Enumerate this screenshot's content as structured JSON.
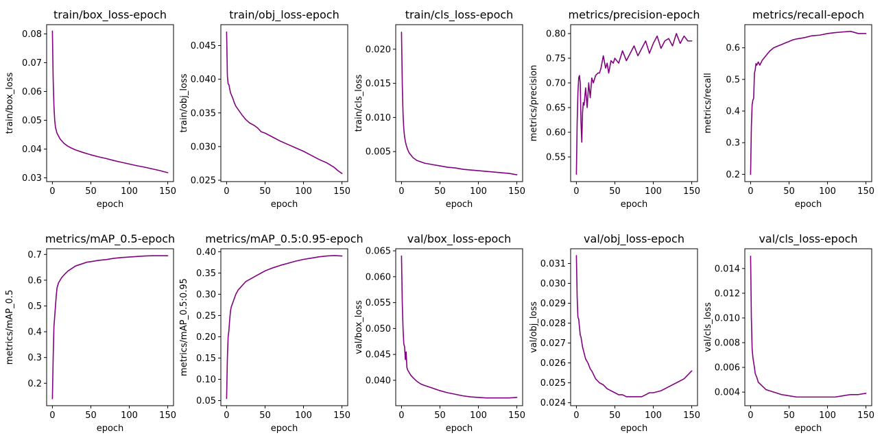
{
  "figure": {
    "line_color": "#800080",
    "grid": false,
    "chart_count": 10
  },
  "chart_data": [
    {
      "type": "line",
      "title": "train/box_loss-epoch",
      "xlabel": "epoch",
      "ylabel": "train/box_loss",
      "xlim": [
        -7.5,
        157.5
      ],
      "ylim": [
        0.0287,
        0.0832
      ],
      "xticks": [
        0,
        50,
        100,
        150
      ],
      "yticks": [
        0.03,
        0.04,
        0.05,
        0.06,
        0.07,
        0.08
      ],
      "ytick_labels": [
        "0.03",
        "0.04",
        "0.05",
        "0.06",
        "0.07",
        "0.08"
      ],
      "series": [
        {
          "x": [
            0,
            1,
            2,
            3,
            4,
            6,
            8,
            10,
            15,
            20,
            25,
            30,
            40,
            50,
            60,
            70,
            80,
            90,
            100,
            110,
            120,
            130,
            140,
            150
          ],
          "y": [
            0.081,
            0.064,
            0.055,
            0.05,
            0.0475,
            0.0455,
            0.0445,
            0.0435,
            0.042,
            0.041,
            0.0403,
            0.0397,
            0.0388,
            0.038,
            0.0373,
            0.0367,
            0.036,
            0.0354,
            0.0348,
            0.0342,
            0.0337,
            0.0331,
            0.0325,
            0.0318
          ]
        }
      ]
    },
    {
      "type": "line",
      "title": "train/obj_loss-epoch",
      "xlabel": "epoch",
      "ylabel": "train/obj_loss",
      "xlim": [
        -7.5,
        157.5
      ],
      "ylim": [
        0.0248,
        0.0481
      ],
      "xticks": [
        0,
        50,
        100,
        150
      ],
      "yticks": [
        0.025,
        0.03,
        0.035,
        0.04,
        0.045
      ],
      "ytick_labels": [
        "0.025",
        "0.030",
        "0.035",
        "0.040",
        "0.045"
      ],
      "series": [
        {
          "x": [
            0,
            1,
            2,
            3,
            5,
            8,
            10,
            12,
            15,
            20,
            25,
            30,
            35,
            40,
            45,
            50,
            60,
            70,
            80,
            90,
            100,
            110,
            120,
            130,
            140,
            145,
            150
          ],
          "y": [
            0.047,
            0.0405,
            0.0393,
            0.0392,
            0.038,
            0.0372,
            0.0365,
            0.036,
            0.0355,
            0.0347,
            0.034,
            0.0335,
            0.0332,
            0.0328,
            0.0322,
            0.032,
            0.0314,
            0.0308,
            0.0303,
            0.0298,
            0.0293,
            0.0287,
            0.0281,
            0.0276,
            0.0269,
            0.0264,
            0.026
          ]
        }
      ]
    },
    {
      "type": "line",
      "title": "train/cls_loss-epoch",
      "xlabel": "epoch",
      "ylabel": "train/cls_loss",
      "xlim": [
        -7.5,
        157.5
      ],
      "ylim": [
        0.0006,
        0.0236
      ],
      "xticks": [
        0,
        50,
        100,
        150
      ],
      "yticks": [
        0.005,
        0.01,
        0.015,
        0.02
      ],
      "ytick_labels": [
        "0.005",
        "0.010",
        "0.015",
        "0.020"
      ],
      "series": [
        {
          "x": [
            0,
            1,
            2,
            3,
            4,
            5,
            6,
            8,
            10,
            15,
            20,
            30,
            40,
            50,
            60,
            70,
            80,
            90,
            100,
            110,
            120,
            130,
            140,
            150
          ],
          "y": [
            0.0225,
            0.015,
            0.0105,
            0.0083,
            0.0072,
            0.0065,
            0.006,
            0.0053,
            0.0048,
            0.0041,
            0.0037,
            0.0033,
            0.0031,
            0.0029,
            0.0027,
            0.0026,
            0.0024,
            0.0023,
            0.0022,
            0.0021,
            0.002,
            0.0019,
            0.0018,
            0.0016
          ]
        }
      ]
    },
    {
      "type": "line",
      "title": "metrics/precision-epoch",
      "xlabel": "epoch",
      "ylabel": "metrics/precision",
      "xlim": [
        -7.5,
        157.5
      ],
      "ylim": [
        0.5,
        0.818
      ],
      "xticks": [
        0,
        50,
        100,
        150
      ],
      "yticks": [
        0.55,
        0.6,
        0.65,
        0.7,
        0.75,
        0.8
      ],
      "ytick_labels": [
        "0.55",
        "0.60",
        "0.65",
        "0.70",
        "0.75",
        "0.80"
      ],
      "series": [
        {
          "x": [
            0,
            1,
            2,
            3,
            4,
            5,
            6,
            7,
            8,
            9,
            10,
            12,
            14,
            16,
            18,
            20,
            22,
            25,
            28,
            30,
            32,
            35,
            38,
            40,
            42,
            45,
            48,
            50,
            55,
            60,
            65,
            70,
            75,
            80,
            85,
            90,
            95,
            100,
            105,
            110,
            115,
            120,
            125,
            130,
            135,
            140,
            145,
            150
          ],
          "y": [
            0.515,
            0.62,
            0.68,
            0.71,
            0.715,
            0.7,
            0.62,
            0.58,
            0.64,
            0.66,
            0.655,
            0.69,
            0.65,
            0.7,
            0.67,
            0.71,
            0.7,
            0.715,
            0.72,
            0.72,
            0.73,
            0.755,
            0.73,
            0.74,
            0.72,
            0.745,
            0.74,
            0.75,
            0.74,
            0.765,
            0.745,
            0.76,
            0.775,
            0.755,
            0.77,
            0.785,
            0.76,
            0.78,
            0.795,
            0.77,
            0.785,
            0.79,
            0.775,
            0.8,
            0.78,
            0.795,
            0.785,
            0.785
          ]
        }
      ]
    },
    {
      "type": "line",
      "title": "metrics/recall-epoch",
      "xlabel": "epoch",
      "ylabel": "metrics/recall",
      "xlim": [
        -7.5,
        157.5
      ],
      "ylim": [
        0.177,
        0.673
      ],
      "xticks": [
        0,
        50,
        100,
        150
      ],
      "yticks": [
        0.2,
        0.3,
        0.4,
        0.5,
        0.6
      ],
      "ytick_labels": [
        "0.2",
        "0.3",
        "0.4",
        "0.5",
        "0.6"
      ],
      "series": [
        {
          "x": [
            0,
            1,
            2,
            3,
            4,
            5,
            6,
            7,
            8,
            10,
            12,
            15,
            20,
            25,
            30,
            35,
            40,
            45,
            50,
            55,
            60,
            70,
            80,
            90,
            100,
            110,
            120,
            130,
            140,
            150
          ],
          "y": [
            0.2,
            0.35,
            0.42,
            0.435,
            0.44,
            0.52,
            0.53,
            0.55,
            0.545,
            0.555,
            0.545,
            0.56,
            0.575,
            0.59,
            0.6,
            0.605,
            0.61,
            0.615,
            0.62,
            0.625,
            0.628,
            0.632,
            0.638,
            0.64,
            0.645,
            0.648,
            0.65,
            0.652,
            0.645,
            0.645
          ]
        }
      ]
    },
    {
      "type": "line",
      "title": "metrics/mAP_0.5-epoch",
      "xlabel": "epoch",
      "ylabel": "metrics/mAP_0.5",
      "xlim": [
        -7.5,
        157.5
      ],
      "ylim": [
        0.113,
        0.722
      ],
      "xticks": [
        0,
        50,
        100,
        150
      ],
      "yticks": [
        0.2,
        0.3,
        0.4,
        0.5,
        0.6,
        0.7
      ],
      "ytick_labels": [
        "0.2",
        "0.3",
        "0.4",
        "0.5",
        "0.6",
        "0.7"
      ],
      "series": [
        {
          "x": [
            0,
            1,
            2,
            3,
            4,
            5,
            6,
            8,
            10,
            12,
            15,
            20,
            25,
            30,
            35,
            40,
            45,
            50,
            60,
            70,
            80,
            90,
            100,
            110,
            120,
            130,
            140,
            150
          ],
          "y": [
            0.14,
            0.3,
            0.42,
            0.46,
            0.5,
            0.54,
            0.57,
            0.59,
            0.6,
            0.61,
            0.62,
            0.635,
            0.645,
            0.655,
            0.66,
            0.665,
            0.67,
            0.672,
            0.677,
            0.68,
            0.685,
            0.688,
            0.69,
            0.692,
            0.694,
            0.695,
            0.695,
            0.695
          ]
        }
      ]
    },
    {
      "type": "line",
      "title": "metrics/mAP_0.5:0.95-epoch",
      "xlabel": "epoch",
      "ylabel": "metrics/mAP_0.5:0.95",
      "xlim": [
        -7.5,
        157.5
      ],
      "ylim": [
        0.038,
        0.407
      ],
      "xticks": [
        0,
        50,
        100,
        150
      ],
      "yticks": [
        0.05,
        0.1,
        0.15,
        0.2,
        0.25,
        0.3,
        0.35,
        0.4
      ],
      "ytick_labels": [
        "0.05",
        "0.10",
        "0.15",
        "0.20",
        "0.25",
        "0.30",
        "0.35",
        "0.40"
      ],
      "series": [
        {
          "x": [
            0,
            1,
            2,
            3,
            4,
            5,
            6,
            8,
            10,
            12,
            15,
            20,
            25,
            30,
            35,
            40,
            45,
            50,
            60,
            70,
            80,
            90,
            100,
            110,
            120,
            130,
            140,
            150
          ],
          "y": [
            0.055,
            0.15,
            0.2,
            0.215,
            0.24,
            0.26,
            0.27,
            0.28,
            0.29,
            0.3,
            0.31,
            0.32,
            0.33,
            0.335,
            0.34,
            0.345,
            0.35,
            0.355,
            0.362,
            0.368,
            0.373,
            0.378,
            0.382,
            0.385,
            0.388,
            0.39,
            0.391,
            0.39
          ]
        }
      ]
    },
    {
      "type": "line",
      "title": "val/box_loss-epoch",
      "xlabel": "epoch",
      "ylabel": "val/box_loss",
      "xlim": [
        -7.5,
        157.5
      ],
      "ylim": [
        0.0351,
        0.0654
      ],
      "xticks": [
        0,
        50,
        100,
        150
      ],
      "yticks": [
        0.04,
        0.045,
        0.05,
        0.055,
        0.06,
        0.065
      ],
      "ytick_labels": [
        "0.040",
        "0.045",
        "0.050",
        "0.055",
        "0.060",
        "0.065"
      ],
      "series": [
        {
          "x": [
            0,
            1,
            2,
            3,
            4,
            5,
            6,
            7,
            8,
            10,
            12,
            15,
            20,
            25,
            30,
            40,
            50,
            60,
            70,
            80,
            90,
            100,
            110,
            120,
            130,
            140,
            150
          ],
          "y": [
            0.064,
            0.055,
            0.05,
            0.047,
            0.0465,
            0.044,
            0.0455,
            0.0425,
            0.042,
            0.0415,
            0.041,
            0.0405,
            0.0398,
            0.0393,
            0.039,
            0.0385,
            0.038,
            0.0376,
            0.0373,
            0.037,
            0.0368,
            0.0367,
            0.0366,
            0.0366,
            0.0366,
            0.0366,
            0.0367
          ]
        }
      ]
    },
    {
      "type": "line",
      "title": "val/obj_loss-epoch",
      "xlabel": "epoch",
      "ylabel": "val/obj_loss",
      "xlim": [
        -7.5,
        157.5
      ],
      "ylim": [
        0.02385,
        0.03174
      ],
      "xticks": [
        0,
        50,
        100,
        150
      ],
      "yticks": [
        0.024,
        0.025,
        0.026,
        0.027,
        0.028,
        0.029,
        0.03,
        0.031
      ],
      "ytick_labels": [
        "0.024",
        "0.025",
        "0.026",
        "0.027",
        "0.028",
        "0.029",
        "0.030",
        "0.031"
      ],
      "series": [
        {
          "x": [
            0,
            1,
            2,
            3,
            4,
            5,
            6,
            8,
            10,
            12,
            15,
            18,
            20,
            25,
            30,
            35,
            40,
            45,
            50,
            55,
            60,
            65,
            70,
            75,
            80,
            85,
            90,
            95,
            100,
            110,
            120,
            130,
            140,
            150
          ],
          "y": [
            0.0314,
            0.0293,
            0.0283,
            0.0282,
            0.0278,
            0.0274,
            0.0273,
            0.0268,
            0.0265,
            0.0262,
            0.026,
            0.0257,
            0.0256,
            0.0252,
            0.025,
            0.0249,
            0.0247,
            0.0246,
            0.0245,
            0.0244,
            0.0244,
            0.0243,
            0.0243,
            0.0243,
            0.0243,
            0.0243,
            0.0244,
            0.0245,
            0.0245,
            0.0246,
            0.0248,
            0.025,
            0.0252,
            0.0256
          ]
        }
      ]
    },
    {
      "type": "line",
      "title": "val/cls_loss-epoch",
      "xlabel": "epoch",
      "ylabel": "val/cls_loss",
      "xlim": [
        -7.5,
        157.5
      ],
      "ylim": [
        0.0029,
        0.0156
      ],
      "xticks": [
        0,
        50,
        100,
        150
      ],
      "yticks": [
        0.004,
        0.006,
        0.008,
        0.01,
        0.012,
        0.014
      ],
      "ytick_labels": [
        "0.004",
        "0.006",
        "0.008",
        "0.010",
        "0.012",
        "0.014"
      ],
      "series": [
        {
          "x": [
            0,
            1,
            2,
            3,
            4,
            5,
            6,
            8,
            10,
            15,
            20,
            25,
            30,
            40,
            50,
            60,
            70,
            80,
            90,
            100,
            110,
            120,
            130,
            140,
            150
          ],
          "y": [
            0.015,
            0.01,
            0.0075,
            0.0068,
            0.0064,
            0.006,
            0.0055,
            0.0052,
            0.0048,
            0.0045,
            0.0042,
            0.0041,
            0.004,
            0.0038,
            0.0037,
            0.0036,
            0.0036,
            0.0036,
            0.0036,
            0.0036,
            0.0036,
            0.0037,
            0.0038,
            0.0038,
            0.0039
          ]
        }
      ]
    }
  ]
}
